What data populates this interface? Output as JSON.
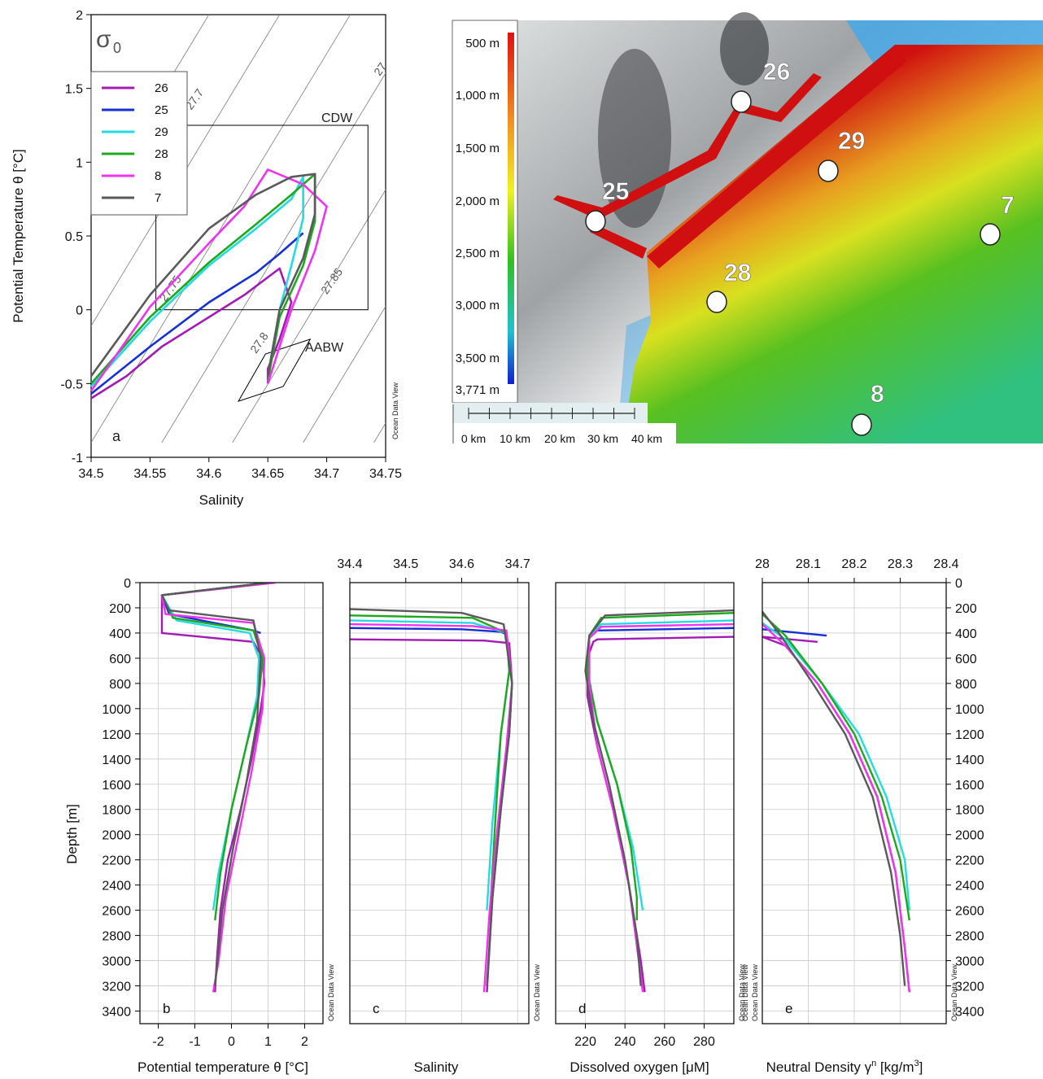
{
  "panel_a": {
    "letter": "a",
    "sigma_label": "σ",
    "sigma_sub": "0",
    "xlabel": "Salinity",
    "ylabel": "Potential Temperature θ [°C]",
    "xticks": [
      "34.5",
      "34.55",
      "34.6",
      "34.65",
      "34.7",
      "34.75"
    ],
    "yticks": [
      "2",
      "1.5",
      "1",
      "0.5",
      "0",
      "-0.5",
      "-1"
    ],
    "isopycnals": [
      "27.7",
      "27.75",
      "27.8",
      "27.85",
      "27"
    ],
    "box_cdw": "CDW",
    "box_aabw": "AABW",
    "credit": "Ocean Data View",
    "legend": [
      {
        "name": "26",
        "color": "#a41ab5"
      },
      {
        "name": "25",
        "color": "#1530d6"
      },
      {
        "name": "29",
        "color": "#22dce0"
      },
      {
        "name": "28",
        "color": "#1ea81e"
      },
      {
        "name": "8",
        "color": "#ef33ef"
      },
      {
        "name": "7",
        "color": "#5a5a5a"
      }
    ]
  },
  "map": {
    "depth_ticks": [
      "500 m",
      "1,000 m",
      "1,500 m",
      "2,000 m",
      "2,500 m",
      "3,000 m",
      "3,500 m",
      "3,771 m"
    ],
    "scale_labels": [
      "0 km",
      "10 km",
      "20 km",
      "30 km",
      "40 km"
    ],
    "stations": [
      "26",
      "29",
      "25",
      "7",
      "28",
      "8"
    ]
  },
  "profiles": {
    "ylabel": "Depth [m]",
    "depth_ticks": [
      "0",
      "200",
      "400",
      "600",
      "800",
      "1000",
      "1200",
      "1400",
      "1600",
      "1800",
      "2000",
      "2200",
      "2400",
      "2600",
      "2800",
      "3000",
      "3200",
      "3400"
    ],
    "credit": "Ocean Data View",
    "b": {
      "letter": "b",
      "xlabel": "Potential temperature θ [°C]",
      "xticks": [
        "-2",
        "-1",
        "0",
        "1",
        "2"
      ]
    },
    "c": {
      "letter": "c",
      "xlabel": "Salinity",
      "xticks": [
        "34.4",
        "34.5",
        "34.6",
        "34.7"
      ]
    },
    "d": {
      "letter": "d",
      "xlabel": "Dissolved oxygen [μM]",
      "xticks": [
        "220",
        "240",
        "260",
        "280"
      ]
    },
    "e": {
      "letter": "e",
      "xlabel": "Neutral Density γ",
      "xlabel_sup": "n",
      "xlabel_unit": " [kg/m",
      "xlabel_sup2": "3",
      "xlabel_end": "]",
      "xticks": [
        "28",
        "28.1",
        "28.2",
        "28.3",
        "28.4"
      ]
    }
  },
  "chart_data": [
    {
      "type": "scatter",
      "title": "",
      "xlabel": "Salinity",
      "ylabel": "Potential Temperature θ [°C]",
      "xlim": [
        34.5,
        34.75
      ],
      "ylim": [
        -1,
        2
      ],
      "grid": false,
      "legend_position": "top-left",
      "series": [
        {
          "name": "26",
          "color": "#a41ab5",
          "x": [
            34.5,
            34.53,
            34.56,
            34.6,
            34.63,
            34.66,
            34.67,
            34.66,
            34.65,
            34.65
          ],
          "y": [
            -0.6,
            -0.45,
            -0.25,
            -0.05,
            0.1,
            0.28,
            0.05,
            -0.2,
            -0.4,
            -0.5
          ]
        },
        {
          "name": "25",
          "color": "#1530d6",
          "x": [
            34.5,
            34.55,
            34.6,
            34.64,
            34.66,
            34.68
          ],
          "y": [
            -0.57,
            -0.25,
            0.05,
            0.25,
            0.38,
            0.52
          ]
        },
        {
          "name": "29",
          "color": "#22dce0",
          "x": [
            34.5,
            34.55,
            34.6,
            34.64,
            34.67,
            34.68,
            34.68,
            34.67,
            34.66,
            34.65
          ],
          "y": [
            -0.52,
            -0.08,
            0.3,
            0.55,
            0.75,
            0.9,
            0.62,
            0.3,
            0.0,
            -0.45
          ]
        },
        {
          "name": "28",
          "color": "#1ea81e",
          "x": [
            34.5,
            34.55,
            34.6,
            34.64,
            34.67,
            34.69,
            34.69,
            34.68,
            34.66,
            34.65
          ],
          "y": [
            -0.5,
            -0.05,
            0.32,
            0.58,
            0.78,
            0.92,
            0.6,
            0.3,
            -0.05,
            -0.48
          ]
        },
        {
          "name": "8",
          "color": "#ef33ef",
          "x": [
            34.5,
            34.55,
            34.6,
            34.63,
            34.65,
            34.68,
            34.7,
            34.69,
            34.67,
            34.65
          ],
          "y": [
            -0.55,
            0.02,
            0.45,
            0.7,
            0.95,
            0.85,
            0.7,
            0.4,
            0.0,
            -0.5
          ]
        },
        {
          "name": "7",
          "color": "#5a5a5a",
          "x": [
            34.5,
            34.55,
            34.6,
            34.64,
            34.67,
            34.69,
            34.69,
            34.68,
            34.66,
            34.65
          ],
          "y": [
            -0.45,
            0.1,
            0.55,
            0.78,
            0.9,
            0.92,
            0.65,
            0.35,
            0.0,
            -0.45
          ]
        }
      ]
    },
    {
      "type": "line",
      "title": "",
      "xlabel": "Potential temperature θ [°C]",
      "ylabel": "Depth [m]",
      "xlim": [
        -2.5,
        2.5
      ],
      "ylim": [
        3500,
        0
      ],
      "grid": true,
      "series": [
        {
          "name": "26",
          "color": "#a41ab5",
          "x": [
            1.0,
            -1.9,
            -1.9,
            0.6,
            0.85,
            0.9,
            0.8,
            0.55,
            0.25,
            -0.1,
            -0.3,
            -0.4,
            -0.45
          ],
          "y": [
            0,
            100,
            400,
            470,
            600,
            800,
            1000,
            1400,
            1800,
            2200,
            2600,
            3000,
            3250
          ]
        },
        {
          "name": "25",
          "color": "#1530d6",
          "x": [
            1.0,
            -1.9,
            -1.7,
            0.6,
            0.8
          ],
          "y": [
            0,
            100,
            250,
            380,
            400
          ]
        },
        {
          "name": "29",
          "color": "#22dce0",
          "x": [
            1.0,
            -1.9,
            -1.5,
            0.5,
            0.75,
            0.7,
            0.4,
            0.0,
            -0.35,
            -0.5
          ],
          "y": [
            0,
            100,
            300,
            400,
            600,
            900,
            1300,
            1800,
            2300,
            2600
          ]
        },
        {
          "name": "28",
          "color": "#1ea81e",
          "x": [
            1.0,
            -1.9,
            -1.6,
            0.6,
            0.85,
            0.75,
            0.4,
            0.0,
            -0.3,
            -0.45
          ],
          "y": [
            0,
            100,
            280,
            380,
            600,
            900,
            1300,
            1800,
            2300,
            2680
          ]
        },
        {
          "name": "8",
          "color": "#ef33ef",
          "x": [
            1.2,
            -1.9,
            -1.8,
            0.6,
            0.9,
            0.85,
            0.55,
            0.2,
            -0.15,
            -0.35,
            -0.5
          ],
          "y": [
            0,
            100,
            250,
            320,
            600,
            1000,
            1500,
            2000,
            2500,
            3000,
            3250
          ]
        },
        {
          "name": "7",
          "color": "#5a5a5a",
          "x": [
            1.0,
            -1.9,
            -1.7,
            0.6,
            0.8,
            0.7,
            0.4,
            0.05,
            -0.25,
            -0.45
          ],
          "y": [
            0,
            100,
            220,
            300,
            600,
            1100,
            1600,
            2100,
            2600,
            3200
          ]
        }
      ]
    },
    {
      "type": "line",
      "title": "",
      "xlabel": "Salinity",
      "ylabel": "Depth [m]",
      "xlim": [
        34.4,
        34.72
      ],
      "ylim": [
        3500,
        0
      ],
      "grid": true,
      "series": [
        {
          "name": "26",
          "color": "#a41ab5",
          "x": [
            34.4,
            34.64,
            34.685,
            34.69,
            34.685,
            34.67,
            34.655,
            34.645
          ],
          "y": [
            450,
            460,
            480,
            800,
            1200,
            1800,
            2500,
            3250
          ]
        },
        {
          "name": "25",
          "color": "#1530d6",
          "x": [
            34.4,
            34.6,
            34.67,
            34.68
          ],
          "y": [
            360,
            370,
            390,
            410
          ]
        },
        {
          "name": "29",
          "color": "#22dce0",
          "x": [
            34.4,
            34.62,
            34.68,
            34.685,
            34.67,
            34.655,
            34.645
          ],
          "y": [
            300,
            320,
            400,
            700,
            1200,
            1900,
            2600
          ]
        },
        {
          "name": "28",
          "color": "#1ea81e",
          "x": [
            34.4,
            34.62,
            34.68,
            34.685,
            34.67,
            34.66,
            34.65
          ],
          "y": [
            260,
            280,
            400,
            700,
            1200,
            1900,
            2680
          ]
        },
        {
          "name": "8",
          "color": "#ef33ef",
          "x": [
            34.4,
            34.62,
            34.68,
            34.69,
            34.68,
            34.665,
            34.65,
            34.64
          ],
          "y": [
            330,
            345,
            380,
            800,
            1300,
            1900,
            2600,
            3250
          ]
        },
        {
          "name": "7",
          "color": "#5a5a5a",
          "x": [
            34.4,
            34.6,
            34.675,
            34.69,
            34.685,
            34.67,
            34.655,
            34.645
          ],
          "y": [
            210,
            240,
            330,
            800,
            1200,
            1800,
            2500,
            3200
          ]
        }
      ]
    },
    {
      "type": "line",
      "title": "",
      "xlabel": "Dissolved oxygen [μM]",
      "ylabel": "Depth [m]",
      "xlim": [
        205,
        295
      ],
      "ylim": [
        3500,
        0
      ],
      "grid": true,
      "series": [
        {
          "name": "26",
          "color": "#a41ab5",
          "x": [
            295,
            226,
            224,
            221,
            221,
            226,
            234,
            242,
            248,
            250
          ],
          "y": [
            430,
            450,
            470,
            600,
            900,
            1300,
            1800,
            2400,
            3000,
            3250
          ]
        },
        {
          "name": "25",
          "color": "#1530d6",
          "x": [
            295,
            226,
            224
          ],
          "y": [
            360,
            380,
            410
          ]
        },
        {
          "name": "29",
          "color": "#22dce0",
          "x": [
            295,
            228,
            222,
            221,
            226,
            236,
            244,
            248,
            249
          ],
          "y": [
            300,
            330,
            420,
            700,
            1100,
            1600,
            2100,
            2500,
            2600
          ]
        },
        {
          "name": "28",
          "color": "#1ea81e",
          "x": [
            295,
            228,
            222,
            221,
            226,
            236,
            243,
            246,
            246
          ],
          "y": [
            240,
            280,
            420,
            700,
            1100,
            1600,
            2100,
            2500,
            2680
          ]
        },
        {
          "name": "8",
          "color": "#ef33ef",
          "x": [
            295,
            228,
            222,
            222,
            226,
            234,
            242,
            247,
            249
          ],
          "y": [
            330,
            350,
            440,
            800,
            1300,
            1800,
            2400,
            3000,
            3250
          ]
        },
        {
          "name": "7",
          "color": "#5a5a5a",
          "x": [
            295,
            230,
            222,
            220,
            224,
            232,
            240,
            246,
            248
          ],
          "y": [
            220,
            260,
            420,
            700,
            1100,
            1600,
            2200,
            2800,
            3200
          ]
        }
      ]
    },
    {
      "type": "line",
      "title": "",
      "xlabel": "Neutral Density γn [kg/m3]",
      "ylabel": "Depth [m]",
      "xlim": [
        28.0,
        28.4
      ],
      "ylim": [
        3500,
        0
      ],
      "grid": true,
      "series": [
        {
          "name": "26",
          "color": "#a41ab5",
          "x": [
            28.12,
            28.0,
            28.05,
            28.12,
            28.19,
            28.25,
            28.29,
            28.31,
            28.32
          ],
          "y": [
            470,
            430,
            500,
            800,
            1200,
            1700,
            2300,
            2900,
            3250
          ]
        },
        {
          "name": "25",
          "color": "#1530d6",
          "x": [
            28.14,
            28.0
          ],
          "y": [
            420,
            370
          ]
        },
        {
          "name": "29",
          "color": "#22dce0",
          "x": [
            28.0,
            28.05,
            28.13,
            28.21,
            28.27,
            28.31,
            28.32
          ],
          "y": [
            320,
            450,
            800,
            1200,
            1700,
            2200,
            2600
          ]
        },
        {
          "name": "28",
          "color": "#1ea81e",
          "x": [
            28.0,
            28.05,
            28.13,
            28.2,
            28.26,
            28.3,
            28.32
          ],
          "y": [
            250,
            420,
            800,
            1200,
            1700,
            2200,
            2680
          ]
        },
        {
          "name": "8",
          "color": "#ef33ef",
          "x": [
            28.0,
            28.05,
            28.12,
            28.19,
            28.25,
            28.29,
            28.31,
            28.32
          ],
          "y": [
            330,
            500,
            800,
            1200,
            1700,
            2300,
            2900,
            3250
          ]
        },
        {
          "name": "7",
          "color": "#5a5a5a",
          "x": [
            28.0,
            28.04,
            28.11,
            28.18,
            28.24,
            28.28,
            28.3,
            28.31
          ],
          "y": [
            230,
            420,
            800,
            1200,
            1700,
            2300,
            2800,
            3200
          ]
        }
      ]
    }
  ]
}
